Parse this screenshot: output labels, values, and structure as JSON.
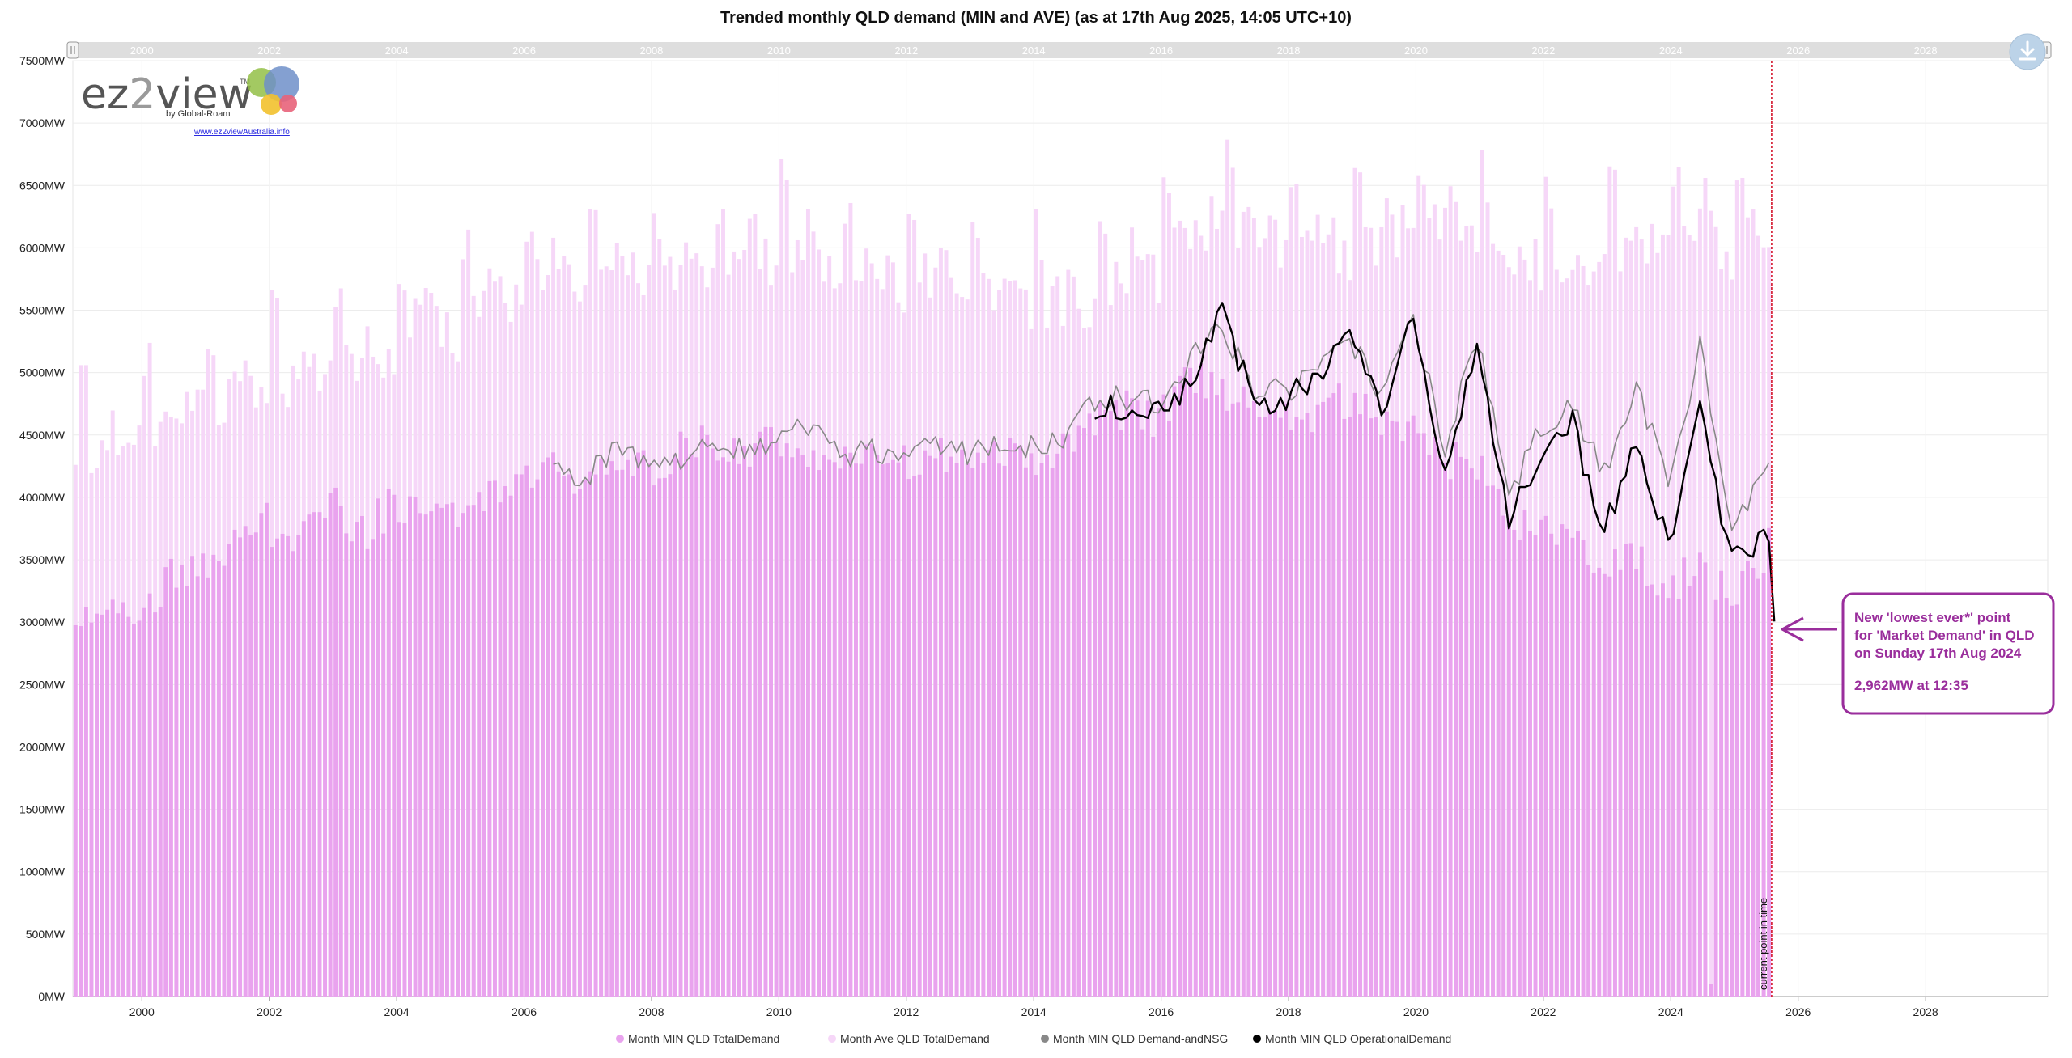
{
  "chart_data": {
    "type": "bar",
    "title": "Trended monthly QLD demand (MIN and AVE) (as at 17th Aug 2025, 14:05 UTC+10)",
    "y_axis": {
      "min": 0,
      "max": 7500,
      "step": 500,
      "unit": "MW",
      "tick_labels": [
        "0MW",
        "500MW",
        "1000MW",
        "1500MW",
        "2000MW",
        "2500MW",
        "3000MW",
        "3500MW",
        "4000MW",
        "4500MW",
        "5000MW",
        "5500MW",
        "6000MW",
        "6500MW",
        "7000MW",
        "7500MW"
      ],
      "grid": true
    },
    "x_axis": {
      "type": "date",
      "start": "1998-12",
      "end": "2029-12",
      "tick_labels": [
        "2000",
        "2002",
        "2004",
        "2006",
        "2008",
        "2010",
        "2012",
        "2014",
        "2016",
        "2018",
        "2020",
        "2022",
        "2024",
        "2026",
        "2028"
      ],
      "grid": true
    },
    "series": [
      {
        "name": "Month MIN QLD TotalDemand",
        "type": "bar",
        "color": "#e9a3ee",
        "anchors": [
          [
            "1998-12",
            3080
          ],
          [
            "1999-06",
            3150
          ],
          [
            "1999-12",
            3050
          ],
          [
            "2000-06",
            3380
          ],
          [
            "2000-12",
            3420
          ],
          [
            "2001-06",
            3620
          ],
          [
            "2001-12",
            3800
          ],
          [
            "2002-06",
            3600
          ],
          [
            "2002-12",
            3960
          ],
          [
            "2003-06",
            3700
          ],
          [
            "2003-12",
            3960
          ],
          [
            "2004-06",
            3900
          ],
          [
            "2004-12",
            3800
          ],
          [
            "2005-06",
            4020
          ],
          [
            "2005-12",
            4150
          ],
          [
            "2006-06",
            4220
          ],
          [
            "2006-12",
            4100
          ],
          [
            "2007-06",
            4300
          ],
          [
            "2007-12",
            4200
          ],
          [
            "2008-06",
            4380
          ],
          [
            "2008-12",
            4420
          ],
          [
            "2009-06",
            4350
          ],
          [
            "2009-12",
            4420
          ],
          [
            "2010-06",
            4400
          ],
          [
            "2010-12",
            4300
          ],
          [
            "2011-06",
            4380
          ],
          [
            "2011-12",
            4250
          ],
          [
            "2012-06",
            4350
          ],
          [
            "2012-12",
            4300
          ],
          [
            "2013-06",
            4380
          ],
          [
            "2013-12",
            4320
          ],
          [
            "2014-06",
            4350
          ],
          [
            "2014-12",
            4650
          ],
          [
            "2015-06",
            4700
          ],
          [
            "2015-12",
            4600
          ],
          [
            "2016-06",
            4950
          ],
          [
            "2016-12",
            4850
          ],
          [
            "2017-06",
            4800
          ],
          [
            "2017-12",
            4700
          ],
          [
            "2018-06",
            4650
          ],
          [
            "2018-12",
            4800
          ],
          [
            "2019-06",
            4600
          ],
          [
            "2019-12",
            4550
          ],
          [
            "2020-06",
            4300
          ],
          [
            "2020-12",
            4300
          ],
          [
            "2021-06",
            3700
          ],
          [
            "2021-12",
            3800
          ],
          [
            "2022-06",
            3600
          ],
          [
            "2022-12",
            3500
          ],
          [
            "2023-06",
            3500
          ],
          [
            "2023-12",
            3300
          ],
          [
            "2024-06",
            3450
          ],
          [
            "2024-12",
            3200
          ],
          [
            "2025-06",
            3500
          ],
          [
            "2025-07",
            3600
          ]
        ]
      },
      {
        "name": "Month Ave QLD TotalDemand",
        "type": "bar",
        "color": "#f6d7f8",
        "anchors": [
          [
            "1998-12",
            4450
          ],
          [
            "1999-06",
            4550
          ],
          [
            "1999-12",
            4550
          ],
          [
            "2000-06",
            4800
          ],
          [
            "2000-12",
            4800
          ],
          [
            "2001-06",
            4950
          ],
          [
            "2001-12",
            5100
          ],
          [
            "2002-06",
            5050
          ],
          [
            "2002-12",
            5250
          ],
          [
            "2003-06",
            5150
          ],
          [
            "2003-12",
            5350
          ],
          [
            "2004-06",
            5650
          ],
          [
            "2004-12",
            5450
          ],
          [
            "2005-06",
            5900
          ],
          [
            "2005-12",
            5700
          ],
          [
            "2006-06",
            6050
          ],
          [
            "2006-12",
            5700
          ],
          [
            "2007-06",
            6150
          ],
          [
            "2007-12",
            5800
          ],
          [
            "2008-06",
            6050
          ],
          [
            "2008-12",
            5900
          ],
          [
            "2009-06",
            6150
          ],
          [
            "2009-12",
            6050
          ],
          [
            "2010-06",
            6250
          ],
          [
            "2010-12",
            5800
          ],
          [
            "2011-06",
            5950
          ],
          [
            "2011-12",
            5800
          ],
          [
            "2012-06",
            6000
          ],
          [
            "2012-12",
            5800
          ],
          [
            "2013-06",
            5750
          ],
          [
            "2013-12",
            5700
          ],
          [
            "2014-06",
            5700
          ],
          [
            "2014-12",
            5700
          ],
          [
            "2015-06",
            6000
          ],
          [
            "2015-12",
            5900
          ],
          [
            "2016-06",
            6300
          ],
          [
            "2016-12",
            6400
          ],
          [
            "2017-06",
            6300
          ],
          [
            "2017-12",
            6100
          ],
          [
            "2018-06",
            6250
          ],
          [
            "2018-12",
            6100
          ],
          [
            "2019-06",
            6250
          ],
          [
            "2019-12",
            6300
          ],
          [
            "2020-06",
            6400
          ],
          [
            "2020-12",
            6200
          ],
          [
            "2021-06",
            6050
          ],
          [
            "2021-12",
            6000
          ],
          [
            "2022-06",
            6100
          ],
          [
            "2022-12",
            6050
          ],
          [
            "2023-06",
            6150
          ],
          [
            "2023-12",
            6100
          ],
          [
            "2024-06",
            6450
          ],
          [
            "2024-12",
            6000
          ],
          [
            "2025-06",
            6350
          ],
          [
            "2025-07",
            6100
          ]
        ]
      },
      {
        "name": "Month MIN QLD Demand-andNSG",
        "type": "line",
        "color": "#888888",
        "anchors": [
          [
            "2006-06",
            4220
          ],
          [
            "2006-12",
            4150
          ],
          [
            "2007-06",
            4450
          ],
          [
            "2007-12",
            4200
          ],
          [
            "2008-06",
            4300
          ],
          [
            "2008-12",
            4450
          ],
          [
            "2009-06",
            4350
          ],
          [
            "2009-12",
            4500
          ],
          [
            "2010-06",
            4600
          ],
          [
            "2010-12",
            4300
          ],
          [
            "2011-06",
            4400
          ],
          [
            "2011-12",
            4300
          ],
          [
            "2012-06",
            4400
          ],
          [
            "2012-12",
            4350
          ],
          [
            "2013-06",
            4450
          ],
          [
            "2013-12",
            4400
          ],
          [
            "2014-06",
            4500
          ],
          [
            "2014-12",
            4800
          ],
          [
            "2015-06",
            4800
          ],
          [
            "2015-12",
            4750
          ],
          [
            "2016-06",
            5100
          ],
          [
            "2016-12",
            5400
          ],
          [
            "2017-06",
            4850
          ],
          [
            "2017-12",
            4850
          ],
          [
            "2018-06",
            5050
          ],
          [
            "2018-12",
            5300
          ],
          [
            "2019-06",
            4800
          ],
          [
            "2019-12",
            5450
          ],
          [
            "2020-06",
            4400
          ],
          [
            "2020-12",
            5300
          ],
          [
            "2021-06",
            4000
          ],
          [
            "2021-12",
            4600
          ],
          [
            "2022-06",
            4700
          ],
          [
            "2022-12",
            4200
          ],
          [
            "2023-06",
            4900
          ],
          [
            "2023-12",
            4100
          ],
          [
            "2024-06",
            5200
          ],
          [
            "2024-12",
            3700
          ],
          [
            "2025-06",
            4300
          ],
          [
            "2025-07",
            4220
          ]
        ]
      },
      {
        "name": "Month MIN QLD OperationalDemand",
        "type": "line",
        "color": "#000000",
        "anchors": [
          [
            "2014-12",
            4700
          ],
          [
            "2015-06",
            4750
          ],
          [
            "2015-12",
            4650
          ],
          [
            "2016-06",
            4950
          ],
          [
            "2016-12",
            5450
          ],
          [
            "2017-06",
            4750
          ],
          [
            "2017-12",
            4750
          ],
          [
            "2018-06",
            5000
          ],
          [
            "2018-12",
            5400
          ],
          [
            "2019-06",
            4700
          ],
          [
            "2019-12",
            5400
          ],
          [
            "2020-06",
            4200
          ],
          [
            "2020-12",
            5250
          ],
          [
            "2021-06",
            3850
          ],
          [
            "2021-12",
            4400
          ],
          [
            "2022-06",
            4600
          ],
          [
            "2022-12",
            3700
          ],
          [
            "2023-06",
            4500
          ],
          [
            "2023-12",
            3600
          ],
          [
            "2024-06",
            4700
          ],
          [
            "2024-12",
            3500
          ],
          [
            "2025-06",
            3700
          ],
          [
            "2025-07",
            3650
          ],
          [
            "2025-08",
            3100
          ]
        ]
      }
    ],
    "outlier": {
      "series": "Month MIN QLD TotalDemand",
      "x": "2024-08",
      "y": 100
    },
    "current_point_in_time": {
      "x": "2025-08",
      "label": "current point in time"
    },
    "legend": {
      "placement": "bottom-center"
    },
    "annotation": {
      "lines": [
        "New 'lowest ever*' point",
        "for 'Market Demand' in QLD",
        "on Sunday 17th Aug 2024",
        "",
        "2,962MW at 12:35"
      ],
      "color": "#9a2e9c"
    },
    "navigator": {
      "tick_labels": [
        "2000",
        "2002",
        "2004",
        "2006",
        "2008",
        "2010",
        "2012",
        "2014",
        "2016",
        "2018",
        "2020",
        "2022",
        "2024",
        "2026",
        "2028"
      ]
    }
  },
  "logo": {
    "brand_left": "ez",
    "brand_two": "2",
    "brand_right": "view",
    "tm": "TM",
    "byline": "by Global-Roam",
    "link": "www.ez2viewAustralia.info"
  },
  "colors": {
    "min_total": "#e9a3ee",
    "ave_total": "#f6d7f8",
    "min_nsg": "#888888",
    "min_operational": "#000000",
    "callout": "#9a2e9c",
    "current_time_line": "#d0021b"
  },
  "icons": [
    "download-icon",
    "navigator-handle-left-icon",
    "navigator-handle-right-icon",
    "arrow-left-icon"
  ]
}
